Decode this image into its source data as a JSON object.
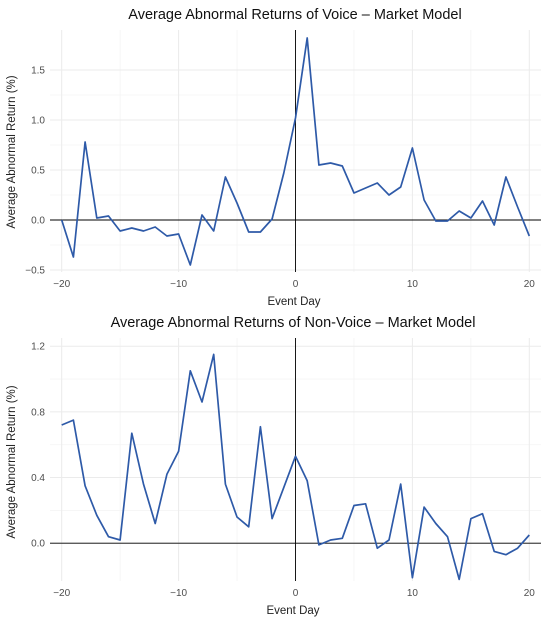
{
  "chart_data": [
    {
      "type": "line",
      "title": "Average Abnormal Returns of Voice  – Market Model",
      "xlabel": "Event Day",
      "ylabel": "Average Abnormal Return (%)",
      "xlim": [
        -21,
        21
      ],
      "ylim": [
        -0.52,
        1.9
      ],
      "xticks": [
        -20,
        -10,
        0,
        10,
        20
      ],
      "xtick_labels": [
        "−20",
        "−10",
        "0",
        "10",
        "20"
      ],
      "yticks": [
        -0.5,
        0.0,
        0.5,
        1.0,
        1.5
      ],
      "ytick_labels": [
        "−0.5",
        "0.0",
        "0.5",
        "1.0",
        "1.5"
      ],
      "grid": true,
      "reference_lines": {
        "x": 0,
        "y": 0
      },
      "color": "#2e5aa8",
      "series": [
        {
          "x": [
            -20,
            -19,
            -18,
            -17,
            -16,
            -15,
            -14,
            -13,
            -12,
            -11,
            -10,
            -9,
            -8,
            -7,
            -6,
            -5,
            -4,
            -3,
            -2,
            -1,
            0,
            1,
            2,
            3,
            4,
            5,
            6,
            7,
            8,
            9,
            10,
            11,
            12,
            13,
            14,
            15,
            16,
            17,
            18,
            19,
            20
          ],
          "values": [
            0.0,
            -0.37,
            0.78,
            0.02,
            0.04,
            -0.11,
            -0.08,
            -0.11,
            -0.07,
            -0.16,
            -0.14,
            -0.45,
            0.05,
            -0.11,
            0.43,
            0.17,
            -0.12,
            -0.12,
            0.01,
            0.47,
            1.02,
            1.82,
            0.55,
            0.57,
            0.54,
            0.27,
            0.32,
            0.37,
            0.25,
            0.33,
            0.72,
            0.2,
            -0.01,
            -0.01,
            0.09,
            0.02,
            0.19,
            -0.05,
            0.43,
            0.13,
            -0.16
          ]
        }
      ]
    },
    {
      "type": "line",
      "title": "Average Abnormal Returns of Non-Voice – Market Model",
      "xlabel": "Event Day",
      "ylabel": "Average Abnormal Return (%)",
      "xlim": [
        -21,
        21
      ],
      "ylim": [
        -0.23,
        1.25
      ],
      "xticks": [
        -20,
        -10,
        0,
        10,
        20
      ],
      "xtick_labels": [
        "−20",
        "−10",
        "0",
        "10",
        "20"
      ],
      "yticks": [
        0.0,
        0.4,
        0.8,
        1.2
      ],
      "ytick_labels": [
        "0.0",
        "0.4",
        "0.8",
        "1.2"
      ],
      "grid": true,
      "reference_lines": {
        "x": 0,
        "y": 0
      },
      "color": "#2e5aa8",
      "series": [
        {
          "x": [
            -20,
            -19,
            -18,
            -17,
            -16,
            -15,
            -14,
            -13,
            -12,
            -11,
            -10,
            -9,
            -8,
            -7,
            -6,
            -5,
            -4,
            -3,
            -2,
            -1,
            0,
            1,
            2,
            3,
            4,
            5,
            6,
            7,
            8,
            9,
            10,
            11,
            12,
            13,
            14,
            15,
            16,
            17,
            18,
            19,
            20
          ],
          "values": [
            0.72,
            0.75,
            0.35,
            0.17,
            0.04,
            0.02,
            0.67,
            0.36,
            0.12,
            0.42,
            0.56,
            1.05,
            0.86,
            1.15,
            0.36,
            0.16,
            0.1,
            0.71,
            0.15,
            0.34,
            0.53,
            0.38,
            -0.01,
            0.02,
            0.03,
            0.23,
            0.24,
            -0.03,
            0.02,
            0.36,
            -0.21,
            0.22,
            0.12,
            0.04,
            -0.22,
            0.15,
            0.18,
            -0.05,
            -0.07,
            -0.03,
            0.05
          ]
        }
      ]
    }
  ]
}
